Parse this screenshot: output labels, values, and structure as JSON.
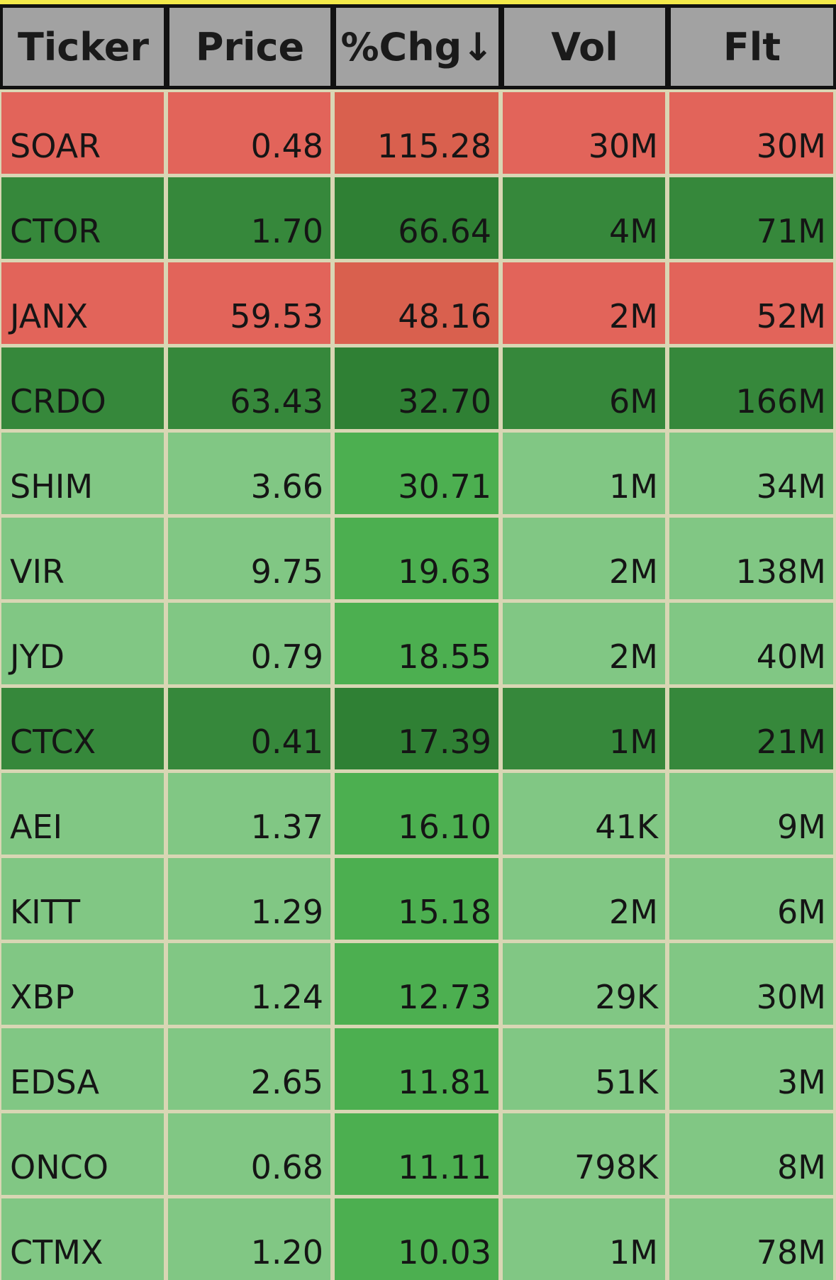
{
  "table": {
    "header": [
      "Ticker",
      "Price",
      "%Chg↓",
      "Vol",
      "Flt"
    ],
    "rows": [
      {
        "cells": [
          "SOAR",
          "0.48",
          "115.28",
          "30M",
          "30M"
        ],
        "color": "#e2645a",
        "chg_color": "#d9604e"
      },
      {
        "cells": [
          "CTOR",
          "1.70",
          "66.64",
          "4M",
          "71M"
        ],
        "color": "#36883b",
        "chg_color": "#2f8034"
      },
      {
        "cells": [
          "JANX",
          "59.53",
          "48.16",
          "2M",
          "52M"
        ],
        "color": "#e2645a",
        "chg_color": "#d9604e"
      },
      {
        "cells": [
          "CRDO",
          "63.43",
          "32.70",
          "6M",
          "166M"
        ],
        "color": "#36883b",
        "chg_color": "#2f8034"
      },
      {
        "cells": [
          "SHIM",
          "3.66",
          "30.71",
          "1M",
          "34M"
        ],
        "color": "#81c784",
        "chg_color": "#4caf50"
      },
      {
        "cells": [
          "VIR",
          "9.75",
          "19.63",
          "2M",
          "138M"
        ],
        "color": "#81c784",
        "chg_color": "#4caf50"
      },
      {
        "cells": [
          "JYD",
          "0.79",
          "18.55",
          "2M",
          "40M"
        ],
        "color": "#81c784",
        "chg_color": "#4caf50"
      },
      {
        "cells": [
          "CTCX",
          "0.41",
          "17.39",
          "1M",
          "21M"
        ],
        "color": "#36883b",
        "chg_color": "#2f8034"
      },
      {
        "cells": [
          "AEI",
          "1.37",
          "16.10",
          "41K",
          "9M"
        ],
        "color": "#81c784",
        "chg_color": "#4caf50"
      },
      {
        "cells": [
          "KITT",
          "1.29",
          "15.18",
          "2M",
          "6M"
        ],
        "color": "#81c784",
        "chg_color": "#4caf50"
      },
      {
        "cells": [
          "XBP",
          "1.24",
          "12.73",
          "29K",
          "30M"
        ],
        "color": "#81c784",
        "chg_color": "#4caf50"
      },
      {
        "cells": [
          "EDSA",
          "2.65",
          "11.81",
          "51K",
          "3M"
        ],
        "color": "#81c784",
        "chg_color": "#4caf50"
      },
      {
        "cells": [
          "ONCO",
          "0.68",
          "11.11",
          "798K",
          "8M"
        ],
        "color": "#81c784",
        "chg_color": "#4caf50"
      },
      {
        "cells": [
          "CTMX",
          "1.20",
          "10.03",
          "1M",
          "78M"
        ],
        "color": "#81c784",
        "chg_color": "#4caf50"
      }
    ]
  }
}
